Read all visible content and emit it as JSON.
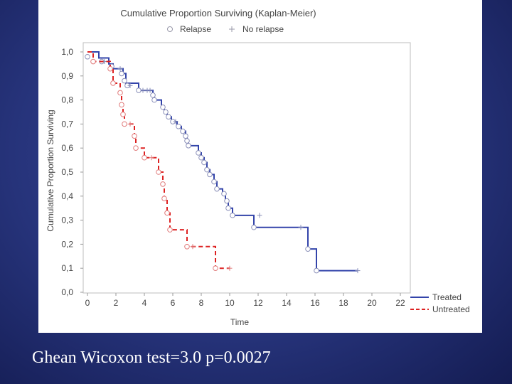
{
  "caption": "Ghean Wicoxon test=3.0 p=0.0027",
  "chart_data": {
    "type": "line",
    "title": "Cumulative Proportion Surviving (Kaplan-Meier)",
    "xlabel": "Time",
    "ylabel": "Cumulative Proportion Surviving",
    "xlim": [
      0,
      22
    ],
    "ylim": [
      0,
      1.0
    ],
    "x_ticks": [
      "0",
      "2",
      "4",
      "6",
      "8",
      "10",
      "12",
      "14",
      "16",
      "18",
      "20",
      "22"
    ],
    "y_ticks": [
      "0,0",
      "0,1",
      "0,2",
      "0,3",
      "0,4",
      "0,5",
      "0,6",
      "0,7",
      "0,8",
      "0,9",
      "1,0"
    ],
    "grid": false,
    "marker_legend": [
      {
        "label": "Relapse",
        "marker": "circle"
      },
      {
        "label": "No relapse",
        "marker": "plus"
      }
    ],
    "series": [
      {
        "name": "Treated",
        "color": "#3344aa",
        "dash": "solid",
        "steps": [
          [
            0,
            1.0
          ],
          [
            0.8,
            0.975
          ],
          [
            1.5,
            0.95
          ],
          [
            1.8,
            0.93
          ],
          [
            2.5,
            0.91
          ],
          [
            2.7,
            0.87
          ],
          [
            3.6,
            0.84
          ],
          [
            4.6,
            0.82
          ],
          [
            4.7,
            0.8
          ],
          [
            5.2,
            0.77
          ],
          [
            5.4,
            0.75
          ],
          [
            5.6,
            0.73
          ],
          [
            5.9,
            0.71
          ],
          [
            6.3,
            0.69
          ],
          [
            6.6,
            0.67
          ],
          [
            6.9,
            0.65
          ],
          [
            7.0,
            0.63
          ],
          [
            7.1,
            0.61
          ],
          [
            7.8,
            0.58
          ],
          [
            8.0,
            0.56
          ],
          [
            8.2,
            0.54
          ],
          [
            8.4,
            0.51
          ],
          [
            8.6,
            0.49
          ],
          [
            8.9,
            0.46
          ],
          [
            9.1,
            0.43
          ],
          [
            9.5,
            0.41
          ],
          [
            9.7,
            0.38
          ],
          [
            9.9,
            0.35
          ],
          [
            10.2,
            0.32
          ],
          [
            11.7,
            0.27
          ],
          [
            15.5,
            0.18
          ],
          [
            16.1,
            0.09
          ],
          [
            19.0,
            0.09
          ]
        ],
        "relapse_points": [
          [
            0,
            0.98
          ],
          [
            1.0,
            0.96
          ],
          [
            1.7,
            0.94
          ],
          [
            2.4,
            0.91
          ],
          [
            2.6,
            0.88
          ],
          [
            2.8,
            0.86
          ],
          [
            3.6,
            0.84
          ],
          [
            4.6,
            0.82
          ],
          [
            4.7,
            0.8
          ],
          [
            5.3,
            0.77
          ],
          [
            5.5,
            0.75
          ],
          [
            5.7,
            0.73
          ],
          [
            6.0,
            0.71
          ],
          [
            6.4,
            0.69
          ],
          [
            6.7,
            0.67
          ],
          [
            6.9,
            0.65
          ],
          [
            7.0,
            0.63
          ],
          [
            7.1,
            0.61
          ],
          [
            7.8,
            0.58
          ],
          [
            8.0,
            0.56
          ],
          [
            8.2,
            0.54
          ],
          [
            8.4,
            0.51
          ],
          [
            8.6,
            0.49
          ],
          [
            8.9,
            0.46
          ],
          [
            9.1,
            0.43
          ],
          [
            9.6,
            0.41
          ],
          [
            9.8,
            0.38
          ],
          [
            9.9,
            0.35
          ],
          [
            10.2,
            0.32
          ],
          [
            11.7,
            0.27
          ],
          [
            15.5,
            0.18
          ],
          [
            16.1,
            0.09
          ]
        ],
        "censored_points": [
          [
            1.2,
            0.96
          ],
          [
            2.3,
            0.93
          ],
          [
            3.0,
            0.86
          ],
          [
            3.9,
            0.84
          ],
          [
            4.2,
            0.84
          ],
          [
            4.4,
            0.84
          ],
          [
            6.2,
            0.71
          ],
          [
            12.1,
            0.32
          ],
          [
            15.0,
            0.27
          ],
          [
            19.0,
            0.09
          ]
        ]
      },
      {
        "name": "Untreated",
        "color": "#dd2222",
        "dash": "dashed",
        "steps": [
          [
            0,
            1.0
          ],
          [
            0.4,
            0.96
          ],
          [
            1.6,
            0.93
          ],
          [
            1.8,
            0.87
          ],
          [
            2.3,
            0.83
          ],
          [
            2.4,
            0.78
          ],
          [
            2.5,
            0.74
          ],
          [
            2.6,
            0.7
          ],
          [
            3.3,
            0.65
          ],
          [
            3.4,
            0.6
          ],
          [
            4.0,
            0.56
          ],
          [
            5.0,
            0.5
          ],
          [
            5.3,
            0.45
          ],
          [
            5.4,
            0.39
          ],
          [
            5.6,
            0.33
          ],
          [
            5.8,
            0.26
          ],
          [
            7.0,
            0.19
          ],
          [
            9.0,
            0.1
          ],
          [
            10.0,
            0.1
          ]
        ],
        "relapse_points": [
          [
            0.4,
            0.96
          ],
          [
            1.6,
            0.93
          ],
          [
            1.8,
            0.87
          ],
          [
            2.3,
            0.83
          ],
          [
            2.4,
            0.78
          ],
          [
            2.5,
            0.74
          ],
          [
            2.6,
            0.7
          ],
          [
            3.3,
            0.65
          ],
          [
            3.4,
            0.6
          ],
          [
            4.0,
            0.56
          ],
          [
            5.0,
            0.5
          ],
          [
            5.3,
            0.45
          ],
          [
            5.4,
            0.39
          ],
          [
            5.6,
            0.33
          ],
          [
            5.8,
            0.26
          ],
          [
            7.0,
            0.19
          ],
          [
            9.0,
            0.1
          ]
        ],
        "censored_points": [
          [
            3.0,
            0.7
          ],
          [
            4.5,
            0.56
          ],
          [
            7.4,
            0.19
          ],
          [
            10.0,
            0.1
          ]
        ]
      }
    ]
  }
}
